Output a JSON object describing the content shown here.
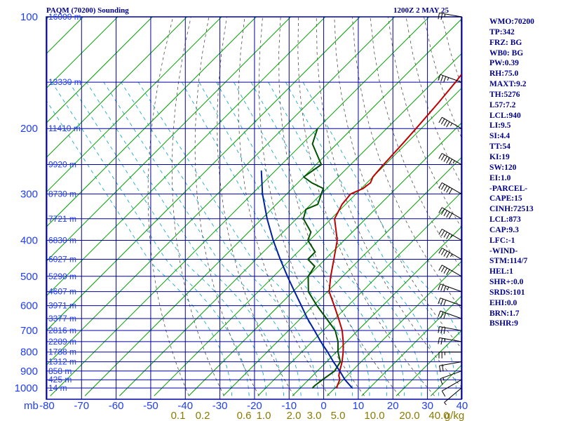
{
  "header": {
    "title": "PAQM (70200) Sounding",
    "datetime": "1200Z  2 MAY 25"
  },
  "indices": [
    "WMO:70200",
    "TP:342",
    "FRZ: BG",
    "WB0: BG",
    "PW:0.39",
    "RH:75.0",
    "MAXT:9.2",
    "TH:5276",
    "L57:7.2",
    "LCL:940",
    "LI:9.5",
    "SI:4.4",
    "TT:54",
    "KI:19",
    "SW:120",
    "EI:1.0",
    "-PARCEL-",
    "CAPE:15",
    "CINH:72513",
    "LCL:873",
    "CAP:9.3",
    "LFC:-1",
    "-WIND-",
    "STM:114/7",
    "HEL:1",
    "SHR+:0.0",
    "SRDS:101",
    "EHI:0.0",
    "BRN:1.7",
    "BSHR:9"
  ],
  "colors": {
    "grid": "#0000a0",
    "isotherm": "#00a000",
    "dry_adiabat": "#505050",
    "moist_adiabat": "#00a0c8",
    "temperature": "#c00000",
    "dewpoint": "#005000",
    "parcel": "#0020a0",
    "wind": "#000000"
  },
  "chart_data": {
    "type": "line",
    "title": "PAQM (70200) Sounding",
    "x_axis_unit_label": "mb",
    "x_ticks": [
      -80,
      -70,
      -60,
      -50,
      -40,
      -30,
      -20,
      -10,
      0,
      10,
      20,
      30,
      40
    ],
    "x_tick_labels": [
      "-80",
      "-70",
      "-60",
      "-50",
      "-40",
      "-30",
      "-20",
      "-10",
      "0",
      "10",
      "20",
      "30",
      "40"
    ],
    "xlim": [
      -80,
      40
    ],
    "pressure_levels": [
      100,
      200,
      300,
      400,
      500,
      600,
      700,
      800,
      900,
      1000
    ],
    "pressure_labels": [
      "100",
      "200",
      "300",
      "400",
      "500",
      "600",
      "700",
      "800",
      "900",
      "1000"
    ],
    "ylim": [
      1050,
      100
    ],
    "y_scale": "log",
    "height_labels": [
      {
        "p": 100,
        "label": "16000 m"
      },
      {
        "p": 150,
        "label": "13330 m"
      },
      {
        "p": 200,
        "label": "11410 m"
      },
      {
        "p": 250,
        "label": "9920 m"
      },
      {
        "p": 300,
        "label": "8730 m"
      },
      {
        "p": 350,
        "label": "7721 m"
      },
      {
        "p": 400,
        "label": "6830 m"
      },
      {
        "p": 450,
        "label": "6027 m"
      },
      {
        "p": 500,
        "label": "5290 m"
      },
      {
        "p": 550,
        "label": "4607 m"
      },
      {
        "p": 600,
        "label": "3971 m"
      },
      {
        "p": 650,
        "label": "3377 m"
      },
      {
        "p": 700,
        "label": "2816 m"
      },
      {
        "p": 750,
        "label": "2289 m"
      },
      {
        "p": 800,
        "label": "1788 m"
      },
      {
        "p": 850,
        "label": "1312 m"
      },
      {
        "p": 900,
        "label": "858 m"
      },
      {
        "p": 950,
        "label": "425 m"
      },
      {
        "p": 1000,
        "label": "14 m"
      }
    ],
    "mixing_ratio_labels": [
      "0.1",
      "0.2",
      "0.6",
      "1.0",
      "2.0",
      "3.0",
      "5.0",
      "10.0",
      "20.0",
      "40.0",
      "g/kg"
    ],
    "series": [
      {
        "key": "temperature",
        "pressure": [
          1000,
          985,
          950,
          925,
          900,
          850,
          800,
          750,
          700,
          650,
          600,
          550,
          500,
          450,
          400,
          350,
          320,
          300,
          290,
          280,
          270,
          250,
          220,
          200,
          170,
          150,
          130,
          120,
          110,
          100
        ],
        "temperature": [
          0.5,
          0.0,
          -1.0,
          -2.5,
          -3.5,
          -5.5,
          -8.0,
          -11.0,
          -14.5,
          -19.0,
          -24.0,
          -29.5,
          -33.5,
          -37.5,
          -42.0,
          -49.0,
          -51.0,
          -51.5,
          -49.5,
          -49.0,
          -50.0,
          -50.5,
          -51.0,
          -51.5,
          -52.5,
          -53.5,
          -55.0,
          -56.0,
          -57.0,
          -58.0
        ]
      },
      {
        "key": "dewpoint",
        "pressure": [
          1000,
          985,
          950,
          925,
          900,
          850,
          800,
          750,
          700,
          650,
          600,
          550,
          500,
          470,
          450,
          430,
          400,
          380,
          350,
          330,
          320,
          300,
          290,
          280,
          270,
          250,
          220,
          200
        ],
        "temperature": [
          -6.5,
          -6.5,
          -6.0,
          -5.5,
          -5.0,
          -6.0,
          -9.5,
          -12.5,
          -16.5,
          -22.5,
          -29.0,
          -35.5,
          -40.0,
          -41.0,
          -45.0,
          -45.0,
          -50.5,
          -52.0,
          -58.0,
          -60.0,
          -58.0,
          -60.0,
          -61.0,
          -66.0,
          -70.0,
          -68.5,
          -77.0,
          -80.0
        ]
      },
      {
        "key": "parcel",
        "pressure": [
          1000,
          950,
          900,
          850,
          800,
          750,
          700,
          650,
          600,
          550,
          500,
          450,
          400,
          350,
          300,
          260
        ],
        "temperature": [
          5.0,
          0.5,
          -3.5,
          -8.0,
          -12.5,
          -17.5,
          -22.5,
          -28.0,
          -33.5,
          -39.5,
          -46.0,
          -53.0,
          -60.5,
          -68.5,
          -77.0,
          -84.0
        ]
      }
    ],
    "wind_profile": [
      {
        "p": 1000,
        "dir": 230,
        "spd": 5
      },
      {
        "p": 950,
        "dir": 240,
        "spd": 10
      },
      {
        "p": 900,
        "dir": 250,
        "spd": 15
      },
      {
        "p": 850,
        "dir": 260,
        "spd": 20
      },
      {
        "p": 800,
        "dir": 270,
        "spd": 25
      },
      {
        "p": 750,
        "dir": 280,
        "spd": 25
      },
      {
        "p": 700,
        "dir": 280,
        "spd": 30
      },
      {
        "p": 650,
        "dir": 290,
        "spd": 30
      },
      {
        "p": 600,
        "dir": 290,
        "spd": 30
      },
      {
        "p": 550,
        "dir": 290,
        "spd": 35
      },
      {
        "p": 500,
        "dir": 300,
        "spd": 40
      },
      {
        "p": 450,
        "dir": 300,
        "spd": 45
      },
      {
        "p": 400,
        "dir": 300,
        "spd": 45
      },
      {
        "p": 350,
        "dir": 300,
        "spd": 50
      },
      {
        "p": 300,
        "dir": 300,
        "spd": 50
      },
      {
        "p": 250,
        "dir": 300,
        "spd": 55
      },
      {
        "p": 200,
        "dir": 300,
        "spd": 45
      },
      {
        "p": 150,
        "dir": 290,
        "spd": 35
      },
      {
        "p": 100,
        "dir": 280,
        "spd": 25
      }
    ]
  }
}
